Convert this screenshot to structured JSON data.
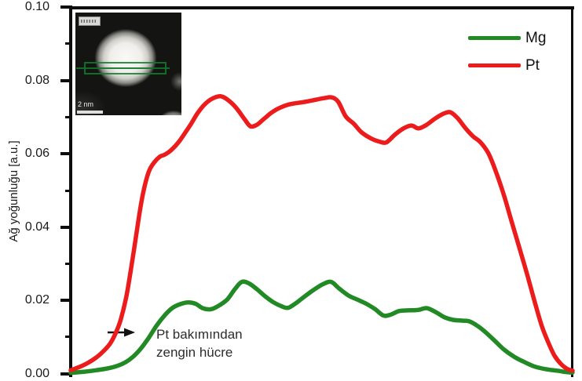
{
  "figure": {
    "y_axis": {
      "label": "Ağ yoğunluğu [a.u.]",
      "tick_labels": [
        "0.10",
        "0.08",
        "0.06",
        "0.04",
        "0.02",
        "0.00"
      ]
    },
    "x_axis": {
      "label": "",
      "tick_labels": []
    }
  },
  "legend": {
    "entries": [
      {
        "label": "Mg",
        "color": "#228a24"
      },
      {
        "label": "Pt",
        "color": "#ed1c1c"
      }
    ]
  },
  "annotation": {
    "line1": "Pt bakımından",
    "line2": "zengin hücre"
  },
  "inset": {
    "scale_bar_label": "2 nm"
  },
  "chart_data": {
    "type": "line",
    "title": "",
    "xlabel": "",
    "ylabel": "Ağ yoğunluğu [a.u.]",
    "xlim": [
      0,
      1
    ],
    "ylim": [
      0,
      0.1
    ],
    "y_ticks": [
      0.0,
      0.02,
      0.04,
      0.06,
      0.08,
      0.1
    ],
    "y_minor_ticks": [
      0.01,
      0.03,
      0.05,
      0.07,
      0.09
    ],
    "grid": false,
    "legend_position": "top-right",
    "annotations": [
      "Pt bakımından zengin hücre"
    ],
    "series": [
      {
        "name": "Mg",
        "color": "#228a24",
        "points": [
          [
            0.0,
            0.0003
          ],
          [
            0.026,
            0.0006
          ],
          [
            0.05,
            0.001
          ],
          [
            0.073,
            0.0015
          ],
          [
            0.093,
            0.0022
          ],
          [
            0.109,
            0.0032
          ],
          [
            0.125,
            0.0048
          ],
          [
            0.14,
            0.007
          ],
          [
            0.156,
            0.01
          ],
          [
            0.171,
            0.0132
          ],
          [
            0.187,
            0.016
          ],
          [
            0.202,
            0.018
          ],
          [
            0.218,
            0.0191
          ],
          [
            0.234,
            0.0196
          ],
          [
            0.249,
            0.0192
          ],
          [
            0.263,
            0.018
          ],
          [
            0.279,
            0.0177
          ],
          [
            0.294,
            0.0186
          ],
          [
            0.312,
            0.0204
          ],
          [
            0.327,
            0.0232
          ],
          [
            0.341,
            0.0252
          ],
          [
            0.355,
            0.0248
          ],
          [
            0.371,
            0.0232
          ],
          [
            0.388,
            0.0212
          ],
          [
            0.403,
            0.0197
          ],
          [
            0.419,
            0.0186
          ],
          [
            0.433,
            0.0181
          ],
          [
            0.449,
            0.0194
          ],
          [
            0.466,
            0.0212
          ],
          [
            0.484,
            0.023
          ],
          [
            0.503,
            0.0246
          ],
          [
            0.519,
            0.0252
          ],
          [
            0.534,
            0.0235
          ],
          [
            0.553,
            0.0215
          ],
          [
            0.572,
            0.0203
          ],
          [
            0.589,
            0.0192
          ],
          [
            0.606,
            0.0178
          ],
          [
            0.623,
            0.016
          ],
          [
            0.637,
            0.0162
          ],
          [
            0.654,
            0.0172
          ],
          [
            0.673,
            0.0174
          ],
          [
            0.692,
            0.0175
          ],
          [
            0.71,
            0.018
          ],
          [
            0.729,
            0.0168
          ],
          [
            0.745,
            0.0155
          ],
          [
            0.762,
            0.0148
          ],
          [
            0.78,
            0.0146
          ],
          [
            0.794,
            0.0144
          ],
          [
            0.81,
            0.0132
          ],
          [
            0.826,
            0.0115
          ],
          [
            0.844,
            0.0092
          ],
          [
            0.864,
            0.0066
          ],
          [
            0.885,
            0.0046
          ],
          [
            0.905,
            0.0032
          ],
          [
            0.925,
            0.002
          ],
          [
            0.947,
            0.0013
          ],
          [
            0.969,
            0.0009
          ],
          [
            0.988,
            0.0005
          ],
          [
            1.0,
            0.0004
          ]
        ]
      },
      {
        "name": "Pt",
        "color": "#ed1c1c",
        "points": [
          [
            0.0,
            0.001
          ],
          [
            0.019,
            0.002
          ],
          [
            0.034,
            0.003
          ],
          [
            0.051,
            0.0045
          ],
          [
            0.065,
            0.0062
          ],
          [
            0.078,
            0.0082
          ],
          [
            0.089,
            0.011
          ],
          [
            0.1,
            0.015
          ],
          [
            0.112,
            0.022
          ],
          [
            0.125,
            0.033
          ],
          [
            0.136,
            0.043
          ],
          [
            0.145,
            0.05
          ],
          [
            0.156,
            0.0555
          ],
          [
            0.167,
            0.058
          ],
          [
            0.178,
            0.0595
          ],
          [
            0.187,
            0.06
          ],
          [
            0.198,
            0.061
          ],
          [
            0.209,
            0.0625
          ],
          [
            0.218,
            0.064
          ],
          [
            0.229,
            0.0662
          ],
          [
            0.24,
            0.0685
          ],
          [
            0.252,
            0.0712
          ],
          [
            0.265,
            0.0735
          ],
          [
            0.28,
            0.0752
          ],
          [
            0.299,
            0.076
          ],
          [
            0.315,
            0.0748
          ],
          [
            0.33,
            0.0728
          ],
          [
            0.346,
            0.0698
          ],
          [
            0.358,
            0.0678
          ],
          [
            0.371,
            0.0682
          ],
          [
            0.385,
            0.0698
          ],
          [
            0.4,
            0.0715
          ],
          [
            0.416,
            0.0728
          ],
          [
            0.436,
            0.0738
          ],
          [
            0.463,
            0.0744
          ],
          [
            0.486,
            0.075
          ],
          [
            0.505,
            0.0755
          ],
          [
            0.52,
            0.0757
          ],
          [
            0.533,
            0.0745
          ],
          [
            0.548,
            0.0705
          ],
          [
            0.564,
            0.0685
          ],
          [
            0.579,
            0.0662
          ],
          [
            0.598,
            0.0645
          ],
          [
            0.615,
            0.0636
          ],
          [
            0.629,
            0.0634
          ],
          [
            0.646,
            0.0655
          ],
          [
            0.663,
            0.0672
          ],
          [
            0.679,
            0.068
          ],
          [
            0.693,
            0.0672
          ],
          [
            0.709,
            0.0682
          ],
          [
            0.727,
            0.07
          ],
          [
            0.744,
            0.0713
          ],
          [
            0.757,
            0.0716
          ],
          [
            0.771,
            0.07
          ],
          [
            0.787,
            0.0672
          ],
          [
            0.802,
            0.065
          ],
          [
            0.816,
            0.0635
          ],
          [
            0.832,
            0.0605
          ],
          [
            0.847,
            0.0555
          ],
          [
            0.863,
            0.049
          ],
          [
            0.878,
            0.042
          ],
          [
            0.894,
            0.0345
          ],
          [
            0.91,
            0.027
          ],
          [
            0.925,
            0.0195
          ],
          [
            0.939,
            0.013
          ],
          [
            0.952,
            0.0085
          ],
          [
            0.964,
            0.005
          ],
          [
            0.977,
            0.0027
          ],
          [
            0.989,
            0.0014
          ],
          [
            1.0,
            0.0009
          ]
        ]
      }
    ]
  }
}
